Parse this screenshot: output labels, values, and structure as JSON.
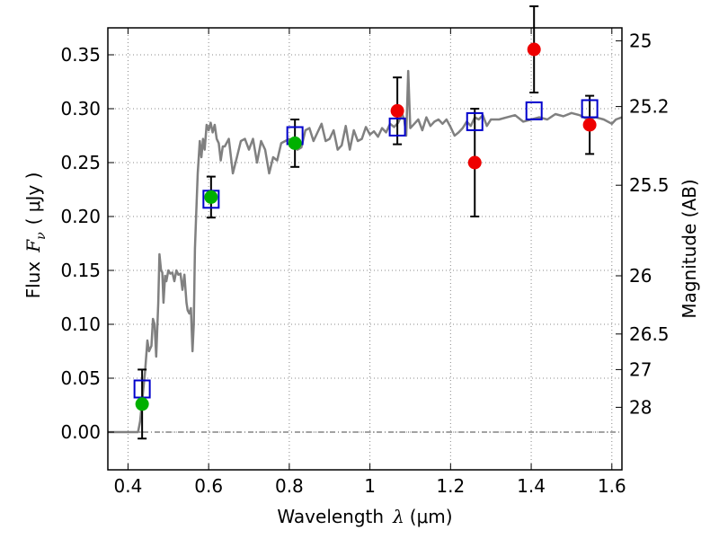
{
  "chart_data": {
    "type": "scatter",
    "xlabel": {
      "prefix": "Wavelength",
      "symbol": "λ",
      "unit": "(μm)"
    },
    "ylabel": {
      "prefix": "Flux",
      "symbol": "F",
      "subscript": "ν",
      "unit": "( μJy )"
    },
    "y2label": "Magnitude (AB)",
    "xlim": [
      0.35,
      1.625
    ],
    "ylim": [
      -0.035,
      0.375
    ],
    "grid": true,
    "x_ticks": [
      0.4,
      0.6,
      0.8,
      1.0,
      1.2,
      1.4,
      1.6
    ],
    "x_tick_labels": [
      "0.4",
      "0.6",
      "0.8",
      "1",
      "1.2",
      "1.4",
      "1.6"
    ],
    "y_ticks": [
      0.0,
      0.05,
      0.1,
      0.15,
      0.2,
      0.25,
      0.3,
      0.35
    ],
    "y_tick_labels": [
      "0.00",
      "0.05",
      "0.10",
      "0.15",
      "0.20",
      "0.25",
      "0.30",
      "0.35"
    ],
    "mag_ticks": [
      {
        "label": "25",
        "flux": 0.363
      },
      {
        "label": "25.2",
        "flux": 0.302
      },
      {
        "label": "25.5",
        "flux": 0.229
      },
      {
        "label": "26",
        "flux": 0.145
      },
      {
        "label": "26.5",
        "flux": 0.091
      },
      {
        "label": "27",
        "flux": 0.058
      },
      {
        "label": "28",
        "flux": 0.023
      }
    ],
    "colors": {
      "model": "#808080",
      "green": "#00b000",
      "red": "#ee0000",
      "blue": "#0000cc",
      "errorbar": "#000000",
      "grid": "#888888"
    },
    "model_spectrum": {
      "x": [
        0.35,
        0.425,
        0.43,
        0.438,
        0.442,
        0.448,
        0.452,
        0.458,
        0.462,
        0.466,
        0.47,
        0.475,
        0.478,
        0.482,
        0.485,
        0.488,
        0.492,
        0.495,
        0.5,
        0.505,
        0.51,
        0.515,
        0.52,
        0.525,
        0.53,
        0.535,
        0.54,
        0.545,
        0.548,
        0.552,
        0.556,
        0.56,
        0.563,
        0.566,
        0.569,
        0.573,
        0.578,
        0.582,
        0.586,
        0.59,
        0.595,
        0.6,
        0.605,
        0.61,
        0.615,
        0.62,
        0.625,
        0.63,
        0.635,
        0.64,
        0.65,
        0.66,
        0.67,
        0.68,
        0.69,
        0.7,
        0.71,
        0.72,
        0.73,
        0.74,
        0.75,
        0.76,
        0.77,
        0.78,
        0.79,
        0.8,
        0.81,
        0.82,
        0.83,
        0.84,
        0.85,
        0.86,
        0.87,
        0.88,
        0.89,
        0.9,
        0.91,
        0.92,
        0.93,
        0.94,
        0.95,
        0.96,
        0.97,
        0.98,
        0.99,
        1.0,
        1.01,
        1.02,
        1.03,
        1.04,
        1.05,
        1.06,
        1.07,
        1.08,
        1.085,
        1.09,
        1.095,
        1.1,
        1.11,
        1.12,
        1.13,
        1.14,
        1.15,
        1.16,
        1.17,
        1.18,
        1.19,
        1.2,
        1.21,
        1.22,
        1.23,
        1.24,
        1.25,
        1.26,
        1.27,
        1.28,
        1.29,
        1.3,
        1.32,
        1.34,
        1.36,
        1.38,
        1.4,
        1.42,
        1.44,
        1.46,
        1.48,
        1.5,
        1.52,
        1.54,
        1.56,
        1.58,
        1.6,
        1.61,
        1.625
      ],
      "y": [
        0.0,
        0.0,
        0.01,
        0.04,
        0.055,
        0.085,
        0.075,
        0.08,
        0.105,
        0.1,
        0.07,
        0.12,
        0.165,
        0.15,
        0.148,
        0.12,
        0.145,
        0.14,
        0.15,
        0.147,
        0.148,
        0.14,
        0.15,
        0.146,
        0.147,
        0.132,
        0.146,
        0.12,
        0.113,
        0.11,
        0.115,
        0.075,
        0.1,
        0.17,
        0.2,
        0.24,
        0.27,
        0.255,
        0.272,
        0.262,
        0.285,
        0.28,
        0.287,
        0.278,
        0.285,
        0.272,
        0.268,
        0.252,
        0.265,
        0.265,
        0.272,
        0.24,
        0.255,
        0.27,
        0.272,
        0.262,
        0.272,
        0.25,
        0.27,
        0.262,
        0.24,
        0.255,
        0.252,
        0.268,
        0.27,
        0.272,
        0.268,
        0.262,
        0.264,
        0.28,
        0.282,
        0.27,
        0.278,
        0.286,
        0.27,
        0.272,
        0.28,
        0.262,
        0.266,
        0.284,
        0.262,
        0.28,
        0.27,
        0.272,
        0.283,
        0.276,
        0.279,
        0.274,
        0.282,
        0.278,
        0.286,
        0.283,
        0.287,
        0.295,
        0.29,
        0.275,
        0.335,
        0.282,
        0.286,
        0.29,
        0.28,
        0.292,
        0.284,
        0.288,
        0.29,
        0.286,
        0.29,
        0.283,
        0.275,
        0.278,
        0.282,
        0.288,
        0.284,
        0.292,
        0.29,
        0.294,
        0.284,
        0.29,
        0.29,
        0.292,
        0.294,
        0.288,
        0.29,
        0.292,
        0.29,
        0.295,
        0.293,
        0.296,
        0.294,
        0.29,
        0.292,
        0.29,
        0.286,
        0.29,
        0.292
      ]
    },
    "green_points": [
      {
        "x": 0.435,
        "y": 0.026,
        "yerr": 0.032
      },
      {
        "x": 0.606,
        "y": 0.218,
        "yerr": 0.019
      },
      {
        "x": 0.814,
        "y": 0.268,
        "yerr": 0.022
      }
    ],
    "red_points": [
      {
        "x": 1.068,
        "y": 0.298,
        "yerr": 0.031
      },
      {
        "x": 1.26,
        "y": 0.25,
        "yerr": 0.05
      },
      {
        "x": 1.407,
        "y": 0.355,
        "yerr": 0.04
      },
      {
        "x": 1.545,
        "y": 0.285,
        "yerr": 0.027
      }
    ],
    "blue_squares": [
      {
        "x": 0.435,
        "y": 0.04
      },
      {
        "x": 0.606,
        "y": 0.216
      },
      {
        "x": 0.814,
        "y": 0.275
      },
      {
        "x": 1.068,
        "y": 0.283
      },
      {
        "x": 1.26,
        "y": 0.288
      },
      {
        "x": 1.407,
        "y": 0.298
      },
      {
        "x": 1.545,
        "y": 0.3
      }
    ],
    "reference_line_y": 0.0
  }
}
